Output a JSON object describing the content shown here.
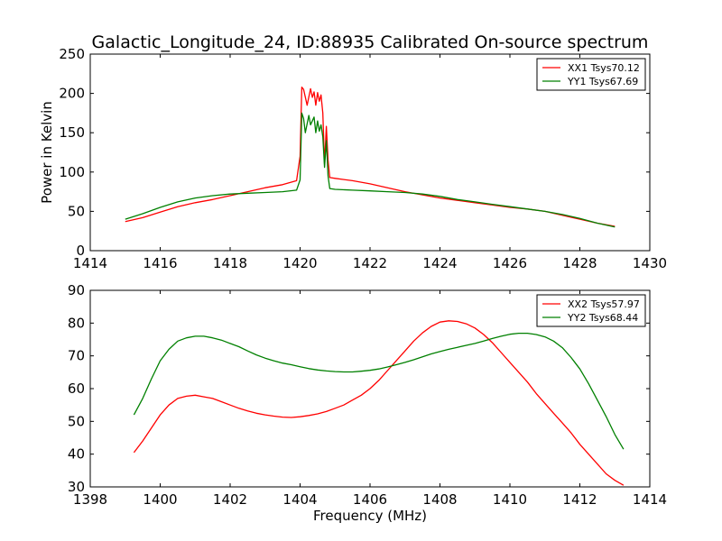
{
  "figure": {
    "title": "Galactic_Longitude_24, ID:88935 Calibrated On-source spectrum",
    "xlabel": "Frequency (MHz)"
  },
  "colors": {
    "xx": "#ff0000",
    "yy": "#008000"
  },
  "legend": {
    "top": [
      "XX1 Tsys70.12",
      "YY1 Tsys67.69"
    ],
    "bottom": [
      "XX2 Tsys57.97",
      "YY2 Tsys68.44"
    ]
  },
  "chart_data": [
    {
      "type": "line",
      "title": "Galactic_Longitude_24, ID:88935 Calibrated On-source spectrum",
      "xlabel": "",
      "ylabel": "Power in Kelvin",
      "xlim": [
        1414,
        1430
      ],
      "ylim": [
        0,
        250
      ],
      "xticks": [
        1414,
        1416,
        1418,
        1420,
        1422,
        1424,
        1426,
        1428,
        1430
      ],
      "yticks": [
        0,
        50,
        100,
        150,
        200,
        250
      ],
      "grid": false,
      "legend_position": "top-right",
      "series": [
        {
          "name": "XX1 Tsys70.12",
          "color": "#ff0000",
          "points": [
            [
              1415.0,
              37
            ],
            [
              1415.5,
              42
            ],
            [
              1416.0,
              49
            ],
            [
              1416.5,
              56
            ],
            [
              1417.0,
              61
            ],
            [
              1417.5,
              65
            ],
            [
              1418.0,
              70
            ],
            [
              1418.5,
              75
            ],
            [
              1419.0,
              80
            ],
            [
              1419.5,
              84
            ],
            [
              1419.9,
              89
            ],
            [
              1420.0,
              120
            ],
            [
              1420.05,
              208
            ],
            [
              1420.1,
              205
            ],
            [
              1420.2,
              185
            ],
            [
              1420.3,
              206
            ],
            [
              1420.35,
              195
            ],
            [
              1420.4,
              202
            ],
            [
              1420.45,
              185
            ],
            [
              1420.5,
              201
            ],
            [
              1420.55,
              190
            ],
            [
              1420.6,
              198
            ],
            [
              1420.65,
              175
            ],
            [
              1420.7,
              110
            ],
            [
              1420.75,
              158
            ],
            [
              1420.8,
              115
            ],
            [
              1420.85,
              93
            ],
            [
              1421.0,
              92
            ],
            [
              1421.5,
              89
            ],
            [
              1422.0,
              85
            ],
            [
              1422.5,
              80
            ],
            [
              1423.0,
              75
            ],
            [
              1423.5,
              71
            ],
            [
              1424.0,
              67
            ],
            [
              1424.5,
              64
            ],
            [
              1425.0,
              61
            ],
            [
              1425.5,
              58
            ],
            [
              1426.0,
              55
            ],
            [
              1426.5,
              53
            ],
            [
              1427.0,
              50
            ],
            [
              1427.5,
              45
            ],
            [
              1428.0,
              40
            ],
            [
              1428.5,
              35
            ],
            [
              1429.0,
              31
            ]
          ]
        },
        {
          "name": "YY1 Tsys67.69",
          "color": "#008000",
          "points": [
            [
              1415.0,
              40
            ],
            [
              1415.5,
              47
            ],
            [
              1416.0,
              55
            ],
            [
              1416.5,
              62
            ],
            [
              1417.0,
              67
            ],
            [
              1417.5,
              70
            ],
            [
              1418.0,
              72
            ],
            [
              1418.5,
              73
            ],
            [
              1419.0,
              74
            ],
            [
              1419.5,
              75
            ],
            [
              1419.9,
              77
            ],
            [
              1420.0,
              90
            ],
            [
              1420.05,
              175
            ],
            [
              1420.1,
              168
            ],
            [
              1420.15,
              150
            ],
            [
              1420.25,
              172
            ],
            [
              1420.3,
              160
            ],
            [
              1420.4,
              170
            ],
            [
              1420.45,
              150
            ],
            [
              1420.5,
              165
            ],
            [
              1420.55,
              152
            ],
            [
              1420.6,
              160
            ],
            [
              1420.65,
              145
            ],
            [
              1420.7,
              106
            ],
            [
              1420.75,
              140
            ],
            [
              1420.8,
              95
            ],
            [
              1420.85,
              79
            ],
            [
              1421.0,
              78
            ],
            [
              1421.5,
              77
            ],
            [
              1422.0,
              76
            ],
            [
              1422.5,
              75
            ],
            [
              1423.0,
              74
            ],
            [
              1423.5,
              72
            ],
            [
              1424.0,
              69
            ],
            [
              1424.5,
              65
            ],
            [
              1425.0,
              62
            ],
            [
              1425.5,
              59
            ],
            [
              1426.0,
              56
            ],
            [
              1426.5,
              53
            ],
            [
              1427.0,
              50
            ],
            [
              1427.5,
              46
            ],
            [
              1428.0,
              41
            ],
            [
              1428.5,
              35
            ],
            [
              1429.0,
              30
            ]
          ]
        }
      ]
    },
    {
      "type": "line",
      "title": "",
      "xlabel": "Frequency (MHz)",
      "ylabel": "",
      "xlim": [
        1398,
        1414
      ],
      "ylim": [
        30,
        90
      ],
      "xticks": [
        1398,
        1400,
        1402,
        1404,
        1406,
        1408,
        1410,
        1412,
        1414
      ],
      "yticks": [
        30,
        40,
        50,
        60,
        70,
        80,
        90
      ],
      "grid": false,
      "legend_position": "top-right",
      "series": [
        {
          "name": "XX2 Tsys57.97",
          "color": "#ff0000",
          "points": [
            [
              1399.25,
              40.5
            ],
            [
              1399.5,
              44
            ],
            [
              1399.75,
              48
            ],
            [
              1400.0,
              52
            ],
            [
              1400.25,
              55
            ],
            [
              1400.5,
              57
            ],
            [
              1400.75,
              57.7
            ],
            [
              1401.0,
              58
            ],
            [
              1401.25,
              57.5
            ],
            [
              1401.5,
              57
            ],
            [
              1401.75,
              56
            ],
            [
              1402.0,
              55
            ],
            [
              1402.25,
              54
            ],
            [
              1402.5,
              53.2
            ],
            [
              1402.75,
              52.5
            ],
            [
              1403.0,
              52
            ],
            [
              1403.25,
              51.6
            ],
            [
              1403.5,
              51.3
            ],
            [
              1403.75,
              51.2
            ],
            [
              1404.0,
              51.4
            ],
            [
              1404.25,
              51.8
            ],
            [
              1404.5,
              52.3
            ],
            [
              1404.75,
              53
            ],
            [
              1405.0,
              54
            ],
            [
              1405.25,
              55
            ],
            [
              1405.5,
              56.5
            ],
            [
              1405.75,
              58
            ],
            [
              1406.0,
              60
            ],
            [
              1406.25,
              62.5
            ],
            [
              1406.5,
              65.5
            ],
            [
              1406.75,
              68.5
            ],
            [
              1407.0,
              71.5
            ],
            [
              1407.25,
              74.5
            ],
            [
              1407.5,
              77
            ],
            [
              1407.75,
              79
            ],
            [
              1408.0,
              80.3
            ],
            [
              1408.25,
              80.7
            ],
            [
              1408.5,
              80.5
            ],
            [
              1408.75,
              79.8
            ],
            [
              1409.0,
              78.5
            ],
            [
              1409.25,
              76.5
            ],
            [
              1409.5,
              74
            ],
            [
              1409.75,
              71
            ],
            [
              1410.0,
              68
            ],
            [
              1410.25,
              65
            ],
            [
              1410.5,
              62
            ],
            [
              1410.75,
              58.5
            ],
            [
              1411.0,
              55.5
            ],
            [
              1411.25,
              52.5
            ],
            [
              1411.5,
              49.5
            ],
            [
              1411.75,
              46.5
            ],
            [
              1412.0,
              43
            ],
            [
              1412.25,
              40
            ],
            [
              1412.5,
              37
            ],
            [
              1412.75,
              34
            ],
            [
              1413.0,
              32
            ],
            [
              1413.25,
              30.5
            ]
          ]
        },
        {
          "name": "YY2 Tsys68.44",
          "color": "#008000",
          "points": [
            [
              1399.25,
              52
            ],
            [
              1399.5,
              57
            ],
            [
              1399.75,
              63
            ],
            [
              1400.0,
              68.5
            ],
            [
              1400.25,
              72
            ],
            [
              1400.5,
              74.5
            ],
            [
              1400.75,
              75.5
            ],
            [
              1401.0,
              76
            ],
            [
              1401.25,
              76
            ],
            [
              1401.5,
              75.5
            ],
            [
              1401.75,
              74.8
            ],
            [
              1402.0,
              73.8
            ],
            [
              1402.25,
              72.8
            ],
            [
              1402.5,
              71.5
            ],
            [
              1402.75,
              70.3
            ],
            [
              1403.0,
              69.3
            ],
            [
              1403.25,
              68.5
            ],
            [
              1403.5,
              67.8
            ],
            [
              1403.75,
              67.3
            ],
            [
              1404.0,
              66.7
            ],
            [
              1404.25,
              66.1
            ],
            [
              1404.5,
              65.7
            ],
            [
              1404.75,
              65.4
            ],
            [
              1405.0,
              65.2
            ],
            [
              1405.25,
              65.1
            ],
            [
              1405.5,
              65.1
            ],
            [
              1405.75,
              65.3
            ],
            [
              1406.0,
              65.6
            ],
            [
              1406.25,
              66
            ],
            [
              1406.5,
              66.6
            ],
            [
              1406.75,
              67.3
            ],
            [
              1407.0,
              68
            ],
            [
              1407.25,
              68.8
            ],
            [
              1407.5,
              69.7
            ],
            [
              1407.75,
              70.6
            ],
            [
              1408.0,
              71.3
            ],
            [
              1408.25,
              72
            ],
            [
              1408.5,
              72.6
            ],
            [
              1408.75,
              73.2
            ],
            [
              1409.0,
              73.8
            ],
            [
              1409.25,
              74.5
            ],
            [
              1409.5,
              75.3
            ],
            [
              1409.75,
              76
            ],
            [
              1410.0,
              76.6
            ],
            [
              1410.25,
              76.9
            ],
            [
              1410.5,
              76.9
            ],
            [
              1410.75,
              76.5
            ],
            [
              1411.0,
              75.8
            ],
            [
              1411.25,
              74.5
            ],
            [
              1411.5,
              72.5
            ],
            [
              1411.75,
              69.5
            ],
            [
              1412.0,
              66
            ],
            [
              1412.25,
              61.5
            ],
            [
              1412.5,
              56.5
            ],
            [
              1412.75,
              51.5
            ],
            [
              1413.0,
              46
            ],
            [
              1413.25,
              41.5
            ]
          ]
        }
      ]
    }
  ]
}
